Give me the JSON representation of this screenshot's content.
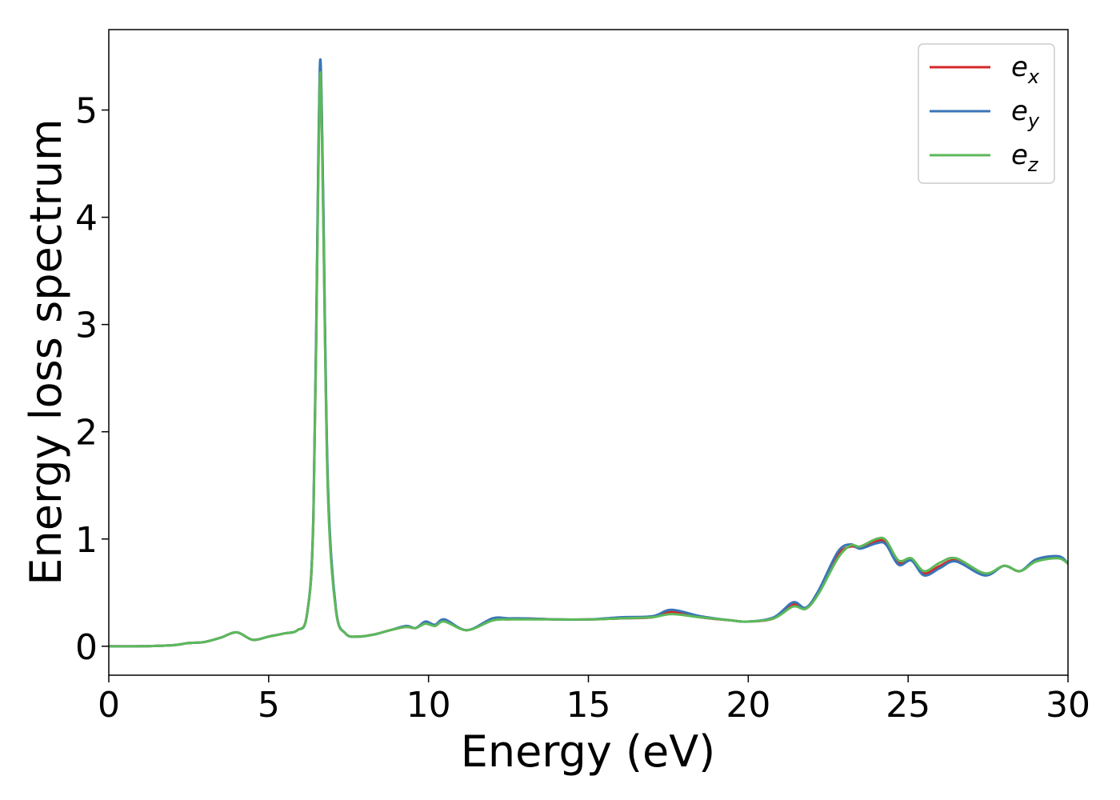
{
  "chart_data": {
    "type": "line",
    "title": "",
    "xlabel": "Energy (eV)",
    "ylabel": "Energy loss spectrum",
    "xlim": [
      0,
      30
    ],
    "ylim": [
      -0.27,
      5.75
    ],
    "xticks": [
      0,
      5,
      10,
      15,
      20,
      25,
      30
    ],
    "yticks": [
      0,
      1,
      2,
      3,
      4,
      5
    ],
    "xtick_labels": [
      "0",
      "5",
      "10",
      "15",
      "20",
      "25",
      "30"
    ],
    "ytick_labels": [
      "0",
      "1",
      "2",
      "3",
      "4",
      "5"
    ],
    "grid": false,
    "legend": {
      "placement": "top-right"
    },
    "series": [
      {
        "name": "e_x",
        "label_base": "e",
        "label_sub": "x",
        "color": "#d62728",
        "points": [
          [
            0,
            0
          ],
          [
            1,
            0
          ],
          [
            2,
            0.01
          ],
          [
            2.5,
            0.03
          ],
          [
            3,
            0.04
          ],
          [
            3.5,
            0.08
          ],
          [
            4,
            0.13
          ],
          [
            4.5,
            0.06
          ],
          [
            5,
            0.09
          ],
          [
            5.5,
            0.12
          ],
          [
            5.9,
            0.15
          ],
          [
            6.2,
            0.3
          ],
          [
            6.4,
            1.2
          ],
          [
            6.55,
            4.4
          ],
          [
            6.62,
            5.42
          ],
          [
            6.7,
            4.2
          ],
          [
            6.85,
            1.5
          ],
          [
            7.1,
            0.35
          ],
          [
            7.4,
            0.12
          ],
          [
            7.8,
            0.09
          ],
          [
            8.3,
            0.11
          ],
          [
            8.8,
            0.15
          ],
          [
            9.3,
            0.18
          ],
          [
            9.6,
            0.17
          ],
          [
            9.9,
            0.22
          ],
          [
            10.2,
            0.19
          ],
          [
            10.5,
            0.24
          ],
          [
            11.2,
            0.15
          ],
          [
            12,
            0.25
          ],
          [
            12.5,
            0.25
          ],
          [
            13,
            0.26
          ],
          [
            14,
            0.25
          ],
          [
            15,
            0.25
          ],
          [
            16,
            0.26
          ],
          [
            17,
            0.27
          ],
          [
            17.6,
            0.32
          ],
          [
            18.5,
            0.27
          ],
          [
            19.5,
            0.24
          ],
          [
            20,
            0.23
          ],
          [
            20.8,
            0.26
          ],
          [
            21.4,
            0.39
          ],
          [
            21.8,
            0.35
          ],
          [
            22.2,
            0.5
          ],
          [
            22.8,
            0.85
          ],
          [
            23.2,
            0.93
          ],
          [
            23.5,
            0.92
          ],
          [
            24,
            0.98
          ],
          [
            24.3,
            0.97
          ],
          [
            24.7,
            0.78
          ],
          [
            25.1,
            0.81
          ],
          [
            25.5,
            0.68
          ],
          [
            26,
            0.75
          ],
          [
            26.5,
            0.8
          ],
          [
            27.4,
            0.67
          ],
          [
            28,
            0.75
          ],
          [
            28.5,
            0.7
          ],
          [
            29,
            0.8
          ],
          [
            29.7,
            0.83
          ],
          [
            30,
            0.77
          ]
        ]
      },
      {
        "name": "e_y",
        "label_base": "e",
        "label_sub": "y",
        "color": "#3a75b7",
        "points": [
          [
            0,
            0
          ],
          [
            1,
            0
          ],
          [
            2,
            0.01
          ],
          [
            2.5,
            0.03
          ],
          [
            3,
            0.04
          ],
          [
            3.5,
            0.08
          ],
          [
            4,
            0.13
          ],
          [
            4.5,
            0.06
          ],
          [
            5,
            0.09
          ],
          [
            5.5,
            0.12
          ],
          [
            5.9,
            0.15
          ],
          [
            6.2,
            0.3
          ],
          [
            6.4,
            1.25
          ],
          [
            6.55,
            4.5
          ],
          [
            6.62,
            5.47
          ],
          [
            6.7,
            4.3
          ],
          [
            6.85,
            1.55
          ],
          [
            7.1,
            0.36
          ],
          [
            7.4,
            0.12
          ],
          [
            7.8,
            0.09
          ],
          [
            8.3,
            0.11
          ],
          [
            8.8,
            0.15
          ],
          [
            9.3,
            0.19
          ],
          [
            9.6,
            0.17
          ],
          [
            9.9,
            0.23
          ],
          [
            10.2,
            0.2
          ],
          [
            10.5,
            0.25
          ],
          [
            11.2,
            0.15
          ],
          [
            12,
            0.26
          ],
          [
            12.5,
            0.26
          ],
          [
            13,
            0.26
          ],
          [
            14,
            0.25
          ],
          [
            15,
            0.25
          ],
          [
            16,
            0.27
          ],
          [
            17,
            0.28
          ],
          [
            17.6,
            0.34
          ],
          [
            18.5,
            0.28
          ],
          [
            19.5,
            0.24
          ],
          [
            20,
            0.23
          ],
          [
            20.8,
            0.27
          ],
          [
            21.4,
            0.41
          ],
          [
            21.8,
            0.36
          ],
          [
            22.2,
            0.52
          ],
          [
            22.8,
            0.88
          ],
          [
            23.2,
            0.95
          ],
          [
            23.5,
            0.91
          ],
          [
            24,
            0.96
          ],
          [
            24.3,
            0.95
          ],
          [
            24.7,
            0.76
          ],
          [
            25.1,
            0.8
          ],
          [
            25.5,
            0.66
          ],
          [
            26,
            0.73
          ],
          [
            26.5,
            0.79
          ],
          [
            27.4,
            0.66
          ],
          [
            28,
            0.75
          ],
          [
            28.5,
            0.7
          ],
          [
            29,
            0.81
          ],
          [
            29.7,
            0.84
          ],
          [
            30,
            0.77
          ]
        ]
      },
      {
        "name": "e_z",
        "label_base": "e",
        "label_sub": "z",
        "color": "#5cb95a",
        "points": [
          [
            0,
            0
          ],
          [
            1,
            0
          ],
          [
            2,
            0.01
          ],
          [
            2.5,
            0.03
          ],
          [
            3,
            0.04
          ],
          [
            3.5,
            0.08
          ],
          [
            4,
            0.13
          ],
          [
            4.5,
            0.06
          ],
          [
            5,
            0.09
          ],
          [
            5.5,
            0.12
          ],
          [
            5.9,
            0.15
          ],
          [
            6.2,
            0.3
          ],
          [
            6.4,
            1.2
          ],
          [
            6.55,
            4.3
          ],
          [
            6.62,
            5.35
          ],
          [
            6.7,
            4.1
          ],
          [
            6.85,
            1.45
          ],
          [
            7.1,
            0.34
          ],
          [
            7.4,
            0.12
          ],
          [
            7.8,
            0.09
          ],
          [
            8.3,
            0.11
          ],
          [
            8.8,
            0.15
          ],
          [
            9.3,
            0.18
          ],
          [
            9.6,
            0.17
          ],
          [
            9.9,
            0.21
          ],
          [
            10.2,
            0.19
          ],
          [
            10.5,
            0.23
          ],
          [
            11.2,
            0.15
          ],
          [
            12,
            0.24
          ],
          [
            12.5,
            0.25
          ],
          [
            13,
            0.25
          ],
          [
            14,
            0.25
          ],
          [
            15,
            0.25
          ],
          [
            16,
            0.26
          ],
          [
            17,
            0.27
          ],
          [
            17.6,
            0.3
          ],
          [
            18.5,
            0.27
          ],
          [
            19.5,
            0.24
          ],
          [
            20,
            0.23
          ],
          [
            20.8,
            0.26
          ],
          [
            21.4,
            0.37
          ],
          [
            21.8,
            0.35
          ],
          [
            22.2,
            0.49
          ],
          [
            22.8,
            0.82
          ],
          [
            23.2,
            0.94
          ],
          [
            23.5,
            0.93
          ],
          [
            24,
            1.0
          ],
          [
            24.3,
            0.99
          ],
          [
            24.7,
            0.8
          ],
          [
            25.1,
            0.82
          ],
          [
            25.5,
            0.7
          ],
          [
            26,
            0.78
          ],
          [
            26.5,
            0.82
          ],
          [
            27.4,
            0.68
          ],
          [
            28,
            0.75
          ],
          [
            28.5,
            0.7
          ],
          [
            29,
            0.79
          ],
          [
            29.7,
            0.82
          ],
          [
            30,
            0.77
          ]
        ]
      }
    ]
  }
}
